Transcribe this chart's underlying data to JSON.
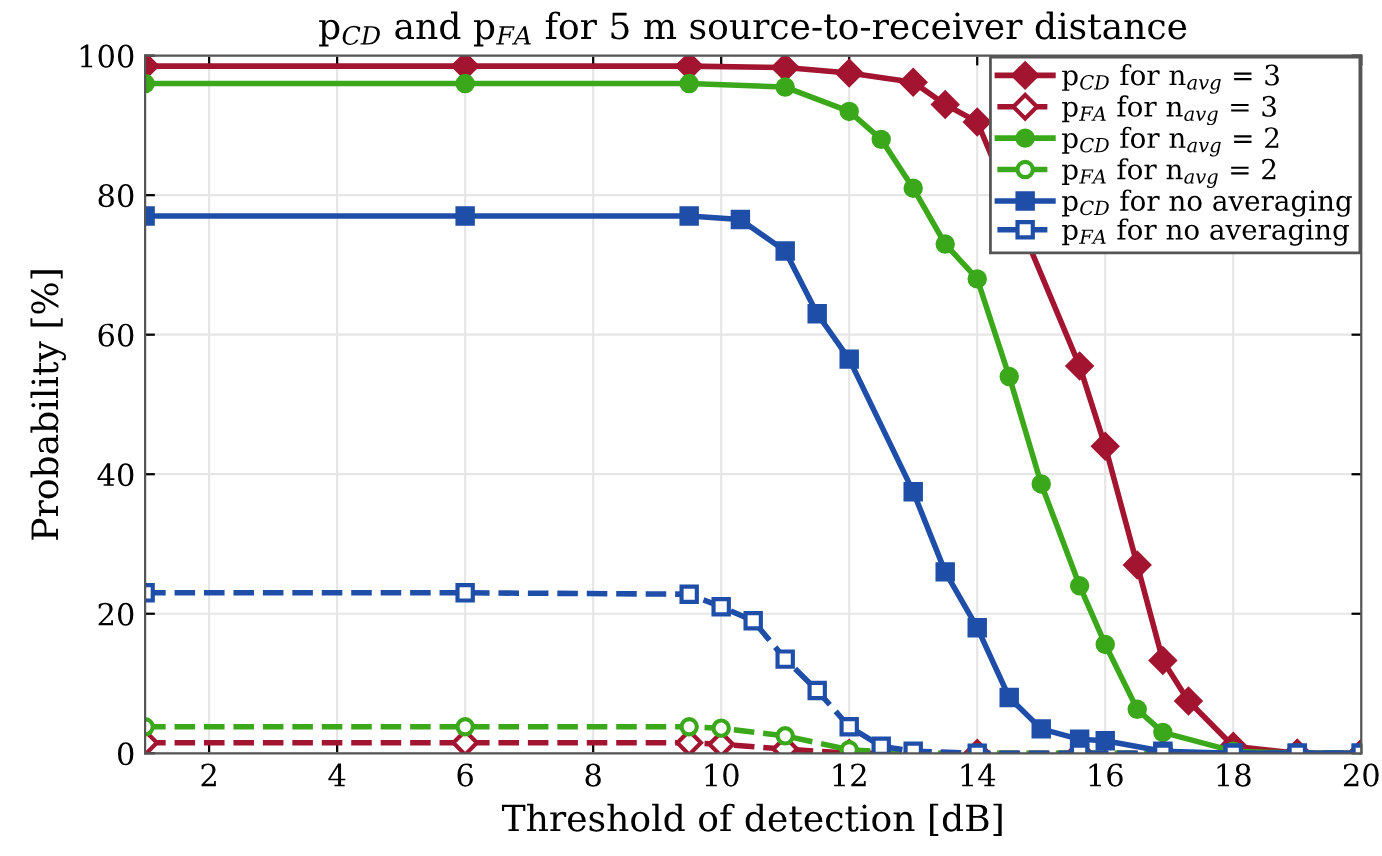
{
  "chart_data": {
    "type": "line",
    "title": "p$_{CD}$ and p$_{FA}$ for 5 m source-to-receiver distance",
    "xlabel": "Threshold of detection [dB]",
    "ylabel": "Probability [%]",
    "xlim": [
      1,
      20
    ],
    "xticks": [
      2,
      4,
      6,
      8,
      10,
      12,
      14,
      16,
      18,
      20
    ],
    "ylim": [
      0,
      100
    ],
    "yticks": [
      0,
      20,
      40,
      60,
      80,
      100
    ],
    "grid": true,
    "legend": "top right",
    "series": [
      {
        "name": "p$_{CD}$ for n$_{avg}$ = 3",
        "color": "#a2142f",
        "marker": "diamond",
        "line_style": "solid",
        "x": [
          1,
          6,
          9.5,
          11,
          12,
          13,
          13.5,
          14,
          15.6,
          16,
          16.5,
          16.9,
          17.3,
          18,
          19,
          20
        ],
        "values": [
          98.5,
          98.5,
          98.5,
          98.3,
          97.5,
          96.2,
          93,
          90.5,
          55.5,
          44,
          27,
          13.3,
          7.5,
          1,
          0,
          0
        ]
      },
      {
        "name": "p$_{FA}$ for n$_{avg}$ = 3",
        "color": "#a2142f",
        "marker": "diamond",
        "line_style": "dashed",
        "x": [
          1,
          6,
          9.5,
          10,
          11,
          12,
          14,
          15.6,
          16.9,
          18,
          19,
          20
        ],
        "values": [
          1.5,
          1.5,
          1.5,
          1.3,
          0.6,
          0,
          0,
          0,
          0,
          0,
          0,
          0
        ]
      },
      {
        "name": "p$_{CD}$ for n$_{avg}$ = 2",
        "color": "#3aa81a",
        "marker": "circle",
        "line_style": "solid",
        "x": [
          1,
          6,
          9.5,
          11,
          12,
          12.5,
          13,
          13.5,
          14,
          14.5,
          15,
          15.6,
          16,
          16.5,
          16.9,
          18,
          19,
          20
        ],
        "values": [
          96,
          96,
          96,
          95.5,
          92,
          88,
          81,
          73,
          68,
          54,
          38.6,
          24,
          15.6,
          6.3,
          3,
          0.3,
          0,
          0
        ]
      },
      {
        "name": "p$_{FA}$ for n$_{avg}$ = 2",
        "color": "#3aa81a",
        "marker": "circle",
        "line_style": "dashed",
        "x": [
          1,
          6,
          9.5,
          10,
          11,
          12,
          13,
          14,
          15.6,
          16.9,
          18,
          19,
          20
        ],
        "values": [
          3.8,
          3.8,
          3.8,
          3.6,
          2.5,
          0.5,
          0,
          0,
          0,
          0,
          0,
          0,
          0
        ]
      },
      {
        "name": "p$_{CD}$ for no averaging",
        "color": "#1f4ea8",
        "marker": "square",
        "line_style": "solid",
        "x": [
          1,
          6,
          9.5,
          10.3,
          11,
          11.5,
          12,
          13,
          13.5,
          14,
          14.5,
          15,
          15.6,
          16,
          16.9,
          18,
          19,
          20
        ],
        "values": [
          77,
          77,
          77,
          76.5,
          72,
          63,
          56.5,
          37.5,
          26,
          18,
          8,
          3.5,
          2,
          1.8,
          0.3,
          0,
          0,
          0
        ]
      },
      {
        "name": "p$_{FA}$ for no averaging",
        "color": "#1f4ea8",
        "marker": "square",
        "line_style": "dashed",
        "x": [
          1,
          6,
          9.5,
          10,
          10.5,
          11,
          11.5,
          12,
          12.5,
          13,
          14,
          15.6,
          16.9,
          18,
          19,
          20
        ],
        "values": [
          23,
          23,
          22.8,
          21,
          19,
          13.5,
          9,
          3.8,
          1,
          0.3,
          0,
          0,
          0,
          0,
          0,
          0
        ]
      }
    ]
  }
}
